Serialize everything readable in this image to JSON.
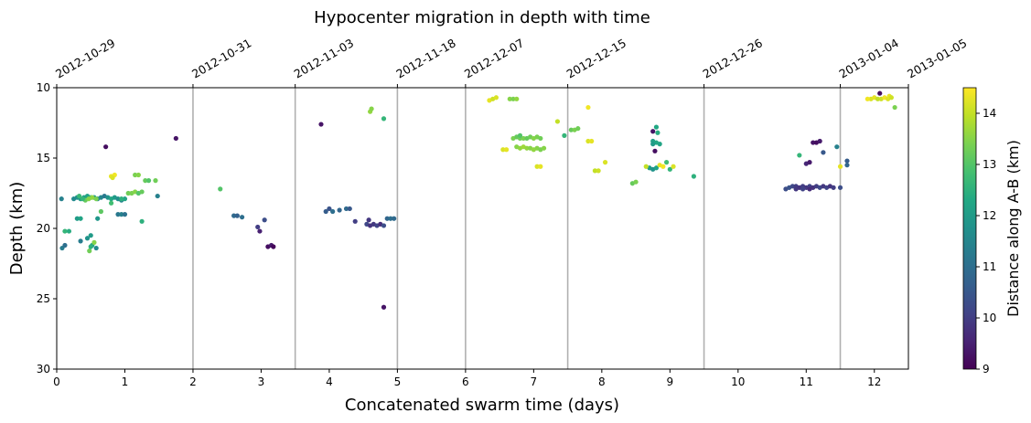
{
  "chart_data": {
    "type": "scatter",
    "title": "Hypocenter migration in depth with time",
    "xlabel": "Concatenated swarm time (days)",
    "ylabel": "Depth (km)",
    "xlim": [
      0,
      12.5
    ],
    "ylim": [
      30,
      10
    ],
    "y_inverted": true,
    "x_ticks": [
      "0",
      "1",
      "2",
      "3",
      "4",
      "5",
      "6",
      "7",
      "8",
      "9",
      "10",
      "11",
      "12"
    ],
    "y_ticks": [
      "10",
      "15",
      "20",
      "25",
      "30"
    ],
    "separators": [
      2,
      3.5,
      5,
      6,
      7.5,
      9.5,
      11.5
    ],
    "swarm_dates": [
      {
        "x": 0,
        "label": "2012-10-29"
      },
      {
        "x": 2,
        "label": "2012-10-31"
      },
      {
        "x": 3.5,
        "label": "2012-11-03"
      },
      {
        "x": 5,
        "label": "2012-11-18"
      },
      {
        "x": 6,
        "label": "2012-12-07"
      },
      {
        "x": 7.5,
        "label": "2012-12-15"
      },
      {
        "x": 9.5,
        "label": "2012-12-26"
      },
      {
        "x": 11.5,
        "label": "2013-01-04"
      },
      {
        "x": 12.5,
        "label": "2013-01-05"
      }
    ],
    "colorbar": {
      "label": "Distance along A-B (km)",
      "min": 9,
      "max": 14.5,
      "ticks": [
        "9",
        "10",
        "11",
        "12",
        "13",
        "14"
      ],
      "colormap": "viridis"
    },
    "points": [
      [
        0.08,
        21.4,
        11.3
      ],
      [
        0.12,
        21.2,
        11.0
      ],
      [
        0.07,
        17.9,
        11.4
      ],
      [
        0.3,
        17.8,
        11.8
      ],
      [
        0.25,
        17.9,
        11.6
      ],
      [
        0.35,
        17.9,
        12.0
      ],
      [
        0.4,
        17.8,
        12.1
      ],
      [
        0.45,
        17.7,
        12.2
      ],
      [
        0.5,
        17.8,
        12.4
      ],
      [
        0.55,
        17.8,
        12.0
      ],
      [
        0.6,
        17.9,
        11.6
      ],
      [
        0.65,
        17.8,
        11.5
      ],
      [
        0.7,
        17.7,
        11.2
      ],
      [
        0.75,
        17.8,
        11.8
      ],
      [
        0.8,
        17.9,
        12.3
      ],
      [
        0.85,
        17.8,
        12.0
      ],
      [
        0.9,
        17.9,
        11.7
      ],
      [
        0.95,
        18.0,
        11.5
      ],
      [
        1.0,
        17.9,
        12.2
      ],
      [
        0.42,
        18.0,
        13.2
      ],
      [
        0.47,
        17.9,
        13.5
      ],
      [
        0.52,
        17.8,
        13.6
      ],
      [
        0.58,
        17.9,
        13.4
      ],
      [
        0.33,
        17.7,
        12.7
      ],
      [
        0.38,
        17.9,
        12.6
      ],
      [
        0.8,
        16.3,
        14.3
      ],
      [
        0.85,
        16.2,
        14.4
      ],
      [
        0.82,
        16.4,
        14.2
      ],
      [
        1.15,
        16.2,
        13.4
      ],
      [
        1.2,
        16.2,
        13.5
      ],
      [
        1.3,
        16.6,
        13.2
      ],
      [
        1.35,
        16.6,
        13.0
      ],
      [
        1.45,
        16.6,
        13.3
      ],
      [
        1.05,
        17.5,
        13.3
      ],
      [
        1.1,
        17.5,
        13.4
      ],
      [
        1.15,
        17.4,
        13.5
      ],
      [
        1.2,
        17.5,
        13.0
      ],
      [
        1.25,
        17.4,
        13.2
      ],
      [
        0.9,
        19.0,
        11.2
      ],
      [
        0.95,
        19.0,
        11.4
      ],
      [
        1.0,
        19.0,
        11.1
      ],
      [
        0.3,
        19.3,
        12.0
      ],
      [
        0.35,
        19.3,
        12.2
      ],
      [
        0.6,
        19.3,
        11.9
      ],
      [
        1.25,
        19.5,
        12.5
      ],
      [
        0.8,
        18.2,
        12.8
      ],
      [
        0.65,
        18.8,
        13.1
      ],
      [
        0.12,
        20.2,
        12.6
      ],
      [
        0.18,
        20.2,
        12.4
      ],
      [
        0.45,
        20.7,
        11.8
      ],
      [
        0.5,
        20.5,
        12.0
      ],
      [
        0.52,
        21.2,
        12.2
      ],
      [
        0.48,
        21.6,
        13.3
      ],
      [
        0.58,
        21.4,
        11.6
      ],
      [
        0.55,
        21.0,
        13.5
      ],
      [
        0.5,
        21.3,
        12.5
      ],
      [
        0.35,
        20.9,
        11.3
      ],
      [
        0.72,
        14.2,
        9.2
      ],
      [
        1.75,
        13.6,
        9.3
      ],
      [
        1.48,
        17.7,
        11.4
      ],
      [
        0.95,
        17.9,
        12.5
      ],
      [
        2.4,
        17.2,
        13.0
      ],
      [
        2.6,
        19.1,
        10.9
      ],
      [
        2.65,
        19.1,
        10.7
      ],
      [
        2.72,
        19.2,
        11.0
      ],
      [
        2.95,
        19.9,
        10.0
      ],
      [
        2.98,
        20.2,
        9.5
      ],
      [
        3.05,
        19.4,
        10.3
      ],
      [
        3.1,
        21.3,
        9.2
      ],
      [
        3.15,
        21.2,
        9.4
      ],
      [
        3.18,
        21.3,
        9.1
      ],
      [
        3.88,
        12.6,
        9.3
      ],
      [
        3.95,
        18.8,
        10.6
      ],
      [
        4.0,
        18.6,
        10.4
      ],
      [
        4.05,
        18.8,
        11.0
      ],
      [
        4.15,
        18.7,
        10.8
      ],
      [
        4.25,
        18.6,
        10.9
      ],
      [
        4.3,
        18.6,
        10.5
      ],
      [
        4.38,
        19.5,
        10.0
      ],
      [
        4.55,
        19.7,
        10.2
      ],
      [
        4.6,
        19.8,
        9.8
      ],
      [
        4.65,
        19.7,
        9.9
      ],
      [
        4.7,
        19.8,
        10.1
      ],
      [
        4.75,
        19.7,
        9.7
      ],
      [
        4.8,
        19.8,
        10.3
      ],
      [
        4.58,
        19.4,
        9.9
      ],
      [
        4.85,
        19.3,
        10.8
      ],
      [
        4.9,
        19.3,
        11.0
      ],
      [
        4.95,
        19.3,
        10.9
      ],
      [
        4.6,
        11.7,
        13.6
      ],
      [
        4.62,
        11.5,
        13.5
      ],
      [
        4.8,
        12.2,
        12.6
      ],
      [
        4.8,
        25.6,
        9.3
      ],
      [
        6.35,
        10.9,
        14.3
      ],
      [
        6.4,
        10.8,
        14.1
      ],
      [
        6.45,
        10.7,
        14.2
      ],
      [
        6.65,
        10.8,
        13.5
      ],
      [
        6.7,
        10.8,
        13.4
      ],
      [
        6.75,
        10.8,
        13.6
      ],
      [
        6.55,
        14.4,
        14.2
      ],
      [
        6.6,
        14.4,
        14.3
      ],
      [
        6.7,
        13.6,
        13.4
      ],
      [
        6.75,
        13.5,
        13.2
      ],
      [
        6.8,
        13.6,
        13.3
      ],
      [
        6.85,
        13.6,
        13.4
      ],
      [
        6.9,
        13.6,
        13.2
      ],
      [
        6.95,
        13.5,
        13.3
      ],
      [
        7.0,
        13.6,
        13.5
      ],
      [
        7.05,
        13.5,
        13.4
      ],
      [
        7.1,
        13.6,
        13.3
      ],
      [
        6.75,
        14.2,
        13.5
      ],
      [
        6.8,
        14.3,
        13.6
      ],
      [
        6.85,
        14.2,
        13.7
      ],
      [
        6.9,
        14.3,
        13.6
      ],
      [
        6.95,
        14.3,
        13.5
      ],
      [
        7.0,
        14.4,
        13.6
      ],
      [
        7.05,
        14.3,
        13.5
      ],
      [
        7.1,
        14.4,
        13.4
      ],
      [
        7.15,
        14.3,
        13.5
      ],
      [
        7.05,
        15.6,
        14.2
      ],
      [
        7.1,
        15.6,
        14.3
      ],
      [
        6.8,
        13.4,
        13.0
      ],
      [
        7.35,
        12.4,
        14.0
      ],
      [
        7.45,
        13.4,
        12.6
      ],
      [
        7.55,
        13.0,
        13.2
      ],
      [
        7.6,
        13.0,
        13.4
      ],
      [
        7.65,
        12.9,
        13.3
      ],
      [
        7.8,
        11.4,
        14.4
      ],
      [
        7.8,
        13.8,
        14.2
      ],
      [
        7.85,
        13.8,
        14.3
      ],
      [
        7.9,
        15.9,
        14.0
      ],
      [
        7.95,
        15.9,
        14.1
      ],
      [
        8.05,
        15.3,
        14.2
      ],
      [
        8.45,
        16.8,
        13.2
      ],
      [
        8.5,
        16.7,
        13.4
      ],
      [
        8.75,
        13.1,
        9.3
      ],
      [
        8.8,
        12.8,
        12.3
      ],
      [
        8.82,
        13.2,
        12.4
      ],
      [
        8.75,
        13.8,
        12.1
      ],
      [
        8.8,
        13.9,
        12.3
      ],
      [
        8.75,
        14.0,
        12.0
      ],
      [
        8.78,
        14.5,
        9.2
      ],
      [
        8.85,
        14.0,
        12.2
      ],
      [
        8.7,
        15.7,
        12.0
      ],
      [
        8.75,
        15.8,
        11.8
      ],
      [
        8.8,
        15.7,
        12.2
      ],
      [
        8.85,
        15.5,
        14.3
      ],
      [
        8.9,
        15.6,
        14.4
      ],
      [
        8.95,
        15.3,
        12.8
      ],
      [
        8.65,
        15.6,
        14.0
      ],
      [
        9.0,
        15.8,
        12.6
      ],
      [
        9.05,
        15.6,
        14.2
      ],
      [
        9.35,
        16.3,
        12.5
      ],
      [
        10.7,
        17.2,
        10.3
      ],
      [
        10.75,
        17.1,
        10.4
      ],
      [
        10.8,
        17.0,
        10.2
      ],
      [
        10.85,
        17.0,
        10.0
      ],
      [
        10.9,
        17.1,
        9.8
      ],
      [
        10.95,
        17.0,
        10.0
      ],
      [
        11.0,
        17.1,
        9.9
      ],
      [
        11.05,
        17.0,
        10.1
      ],
      [
        11.1,
        17.1,
        9.8
      ],
      [
        11.15,
        17.0,
        10.0
      ],
      [
        11.2,
        17.1,
        10.2
      ],
      [
        11.25,
        17.0,
        9.9
      ],
      [
        11.3,
        17.1,
        10.1
      ],
      [
        11.35,
        17.0,
        9.8
      ],
      [
        11.4,
        17.1,
        10.0
      ],
      [
        11.5,
        17.1,
        10.3
      ],
      [
        10.85,
        17.2,
        9.9
      ],
      [
        10.95,
        17.2,
        10.1
      ],
      [
        11.05,
        17.2,
        9.7
      ],
      [
        10.9,
        14.8,
        12.6
      ],
      [
        11.0,
        15.4,
        9.6
      ],
      [
        11.05,
        15.3,
        9.4
      ],
      [
        11.1,
        13.9,
        9.3
      ],
      [
        11.15,
        13.9,
        9.2
      ],
      [
        11.2,
        13.8,
        9.4
      ],
      [
        11.25,
        14.6,
        10.5
      ],
      [
        11.45,
        14.2,
        11.4
      ],
      [
        11.5,
        15.6,
        14.3
      ],
      [
        11.6,
        15.2,
        10.6
      ],
      [
        11.6,
        15.5,
        10.8
      ],
      [
        11.95,
        10.8,
        14.2
      ],
      [
        12.0,
        10.7,
        14.3
      ],
      [
        12.05,
        10.8,
        14.0
      ],
      [
        12.08,
        10.4,
        9.2
      ],
      [
        12.1,
        10.8,
        14.1
      ],
      [
        12.15,
        10.7,
        14.4
      ],
      [
        12.2,
        10.8,
        14.2
      ],
      [
        12.22,
        10.6,
        14.3
      ],
      [
        12.25,
        10.7,
        14.1
      ],
      [
        12.3,
        11.4,
        13.4
      ],
      [
        11.9,
        10.8,
        14.4
      ]
    ]
  }
}
